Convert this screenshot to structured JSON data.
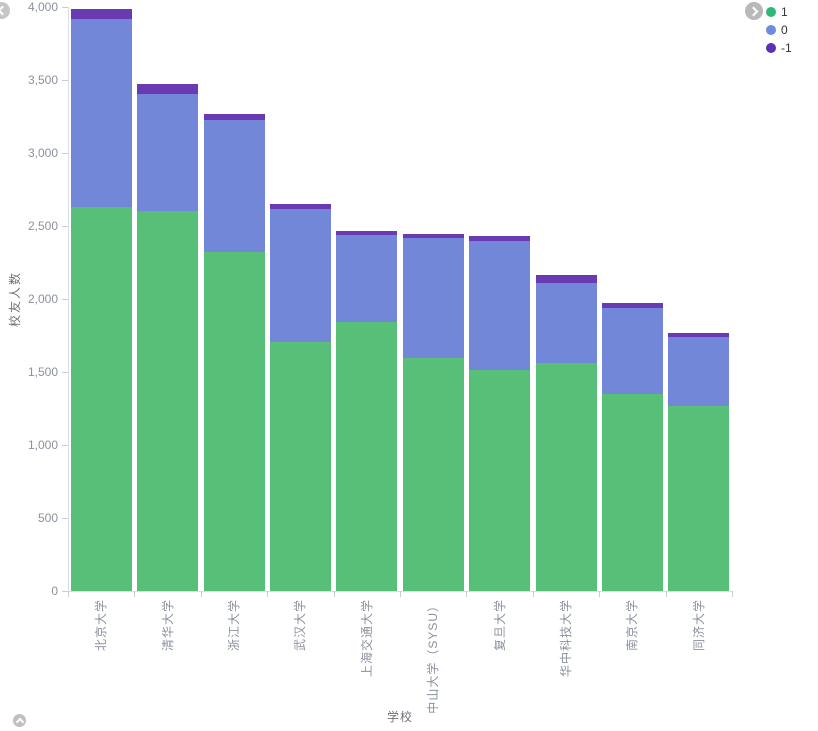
{
  "legend": {
    "items": [
      {
        "label": "1",
        "color": "#2eb873"
      },
      {
        "label": "0",
        "color": "#6b8ae0"
      },
      {
        "label": "-1",
        "color": "#5b2fb8"
      }
    ]
  },
  "controls": {
    "legend_next": "next",
    "nav_left": "previous",
    "scroll_up": "scroll-to-top"
  },
  "chart_data": {
    "type": "bar",
    "stacked": true,
    "title": "",
    "xlabel": "学校",
    "ylabel": "校友人数",
    "categories": [
      "北京大学",
      "清华大学",
      "浙江大学",
      "武汉大学",
      "上海交通大学",
      "中山大学（SYSU）",
      "复旦大学",
      "华中科技大学",
      "南京大学",
      "同济大学"
    ],
    "series": [
      {
        "name": "1",
        "color": "#57bf77",
        "values": [
          2630,
          2605,
          2320,
          1705,
          1845,
          1600,
          1515,
          1565,
          1350,
          1270
        ]
      },
      {
        "name": "0",
        "color": "#7387d8",
        "values": [
          1290,
          800,
          910,
          910,
          595,
          820,
          885,
          545,
          590,
          470
        ]
      },
      {
        "name": "-1",
        "color": "#6a3ab3",
        "values": [
          65,
          70,
          40,
          35,
          25,
          25,
          35,
          55,
          35,
          25
        ]
      }
    ],
    "ylim": [
      0,
      4000
    ],
    "yticks": [
      0,
      500,
      1000,
      1500,
      2000,
      2500,
      3000,
      3500,
      4000
    ],
    "ytick_labels": [
      "0",
      "500",
      "1,000",
      "1,500",
      "2,000",
      "2,500",
      "3,000",
      "3,500",
      "4,000"
    ],
    "grid": false,
    "legend_position": "top-right"
  }
}
